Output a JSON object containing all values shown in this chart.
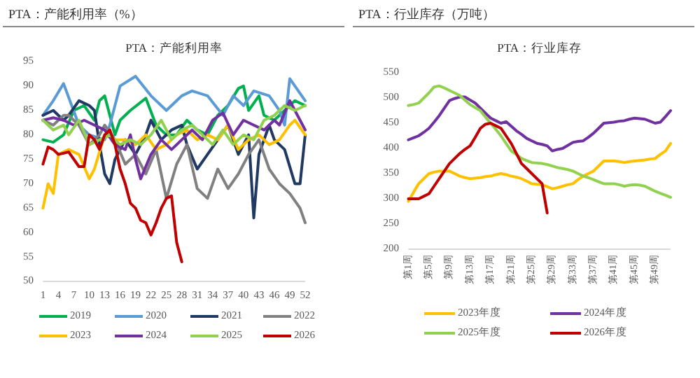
{
  "chart_data": [
    {
      "type": "line",
      "title": "PTA：产能利用率（%）",
      "subtitle": "PTA：产能利用率",
      "xlim": [
        1,
        52
      ],
      "xticks": [
        1,
        4,
        7,
        10,
        13,
        16,
        19,
        22,
        25,
        28,
        31,
        34,
        37,
        40,
        43,
        46,
        49,
        52
      ],
      "ylim": [
        50,
        95
      ],
      "yticks": [
        50,
        55,
        60,
        65,
        70,
        75,
        80,
        85,
        90,
        95
      ],
      "legend": "bottom",
      "series": [
        {
          "name": "2019",
          "color": "#00b050",
          "x": [
            1,
            3,
            5,
            7,
            9,
            11,
            12,
            13,
            15,
            16,
            18,
            21,
            23,
            25,
            27,
            29,
            31,
            33,
            35,
            37,
            39,
            40,
            41,
            43,
            44,
            46,
            48,
            50,
            52
          ],
          "values": [
            79,
            78.5,
            80,
            85,
            86,
            83,
            87,
            88,
            80,
            83,
            85,
            87.5,
            82,
            80,
            80,
            83,
            81,
            80,
            84,
            86,
            89.5,
            90,
            85,
            88,
            84,
            83,
            85,
            87,
            86
          ]
        },
        {
          "name": "2020",
          "color": "#5b9bd5",
          "x": [
            1,
            3,
            5,
            8,
            10,
            13,
            14,
            16,
            19,
            22,
            25,
            28,
            30,
            33,
            36,
            38,
            40,
            42,
            45,
            47,
            48,
            49,
            50,
            52
          ],
          "values": [
            84,
            87,
            90.5,
            82,
            80,
            79,
            82,
            90,
            92,
            88,
            85,
            88,
            89,
            88,
            84,
            88,
            86,
            89,
            88,
            85,
            82,
            91.5,
            90,
            87
          ]
        },
        {
          "name": "2021",
          "color": "#1f3864",
          "x": [
            1,
            3,
            5,
            6,
            8,
            10,
            11,
            12,
            13,
            14,
            15,
            17,
            19,
            21,
            22,
            24,
            26,
            28,
            29,
            31,
            33,
            35,
            37,
            39,
            41,
            42,
            43,
            45,
            46,
            48,
            50,
            51,
            52
          ],
          "values": [
            84,
            85,
            83,
            84,
            87,
            86,
            85,
            78,
            72,
            70,
            75,
            79,
            76,
            80,
            83,
            79,
            81,
            82,
            78,
            73,
            76,
            79,
            82,
            76,
            80,
            63,
            76,
            82,
            79,
            77,
            70,
            70,
            80
          ]
        },
        {
          "name": "2022",
          "color": "#808080",
          "x": [
            1,
            3,
            5,
            6,
            8,
            10,
            12,
            13,
            15,
            17,
            19,
            21,
            23,
            25,
            27,
            29,
            31,
            33,
            35,
            37,
            39,
            41,
            43,
            45,
            47,
            49,
            51,
            52
          ],
          "values": [
            83,
            82,
            84,
            84,
            82,
            78,
            80,
            82,
            79,
            74,
            76,
            72,
            77,
            67,
            74,
            78,
            69,
            67,
            73,
            69,
            72,
            76,
            79,
            73,
            70,
            68,
            65,
            62
          ]
        },
        {
          "name": "2023",
          "color": "#ffc000",
          "x": [
            1,
            2,
            3,
            4,
            6,
            8,
            10,
            11,
            13,
            15,
            17,
            19,
            21,
            23,
            25,
            27,
            29,
            31,
            33,
            35,
            37,
            39,
            41,
            43,
            45,
            47,
            49,
            50,
            52
          ],
          "values": [
            65,
            70,
            68,
            76,
            77,
            76,
            71,
            73,
            80,
            79,
            79,
            78,
            80,
            77,
            78,
            80,
            81,
            79,
            80,
            79,
            82,
            77,
            79,
            80,
            78,
            79,
            82,
            83,
            80
          ]
        },
        {
          "name": "2024",
          "color": "#7030a0",
          "x": [
            1,
            3,
            5,
            7,
            9,
            11,
            13,
            15,
            17,
            18,
            19,
            20,
            22,
            24,
            26,
            28,
            30,
            32,
            34,
            36,
            38,
            40,
            42,
            44,
            46,
            47,
            49,
            51,
            52
          ],
          "values": [
            83,
            83.5,
            83,
            82,
            83,
            82,
            81,
            78,
            77,
            80,
            75,
            71,
            76,
            79,
            77,
            79,
            81,
            79,
            83,
            84.5,
            80,
            83,
            82,
            81,
            83,
            82,
            87,
            83,
            81
          ]
        },
        {
          "name": "2025",
          "color": "#92d050",
          "x": [
            1,
            3,
            5,
            6,
            8,
            10,
            12,
            14,
            16,
            18,
            20,
            22,
            24,
            26,
            28,
            30,
            32,
            34,
            36,
            38,
            40,
            42,
            44,
            46,
            48,
            50,
            52
          ],
          "values": [
            83,
            81,
            82,
            80,
            83,
            78,
            79,
            80,
            78,
            79,
            78,
            80,
            83,
            79,
            81,
            82,
            80,
            78,
            81,
            78,
            80,
            79,
            83,
            84,
            86,
            85,
            86
          ]
        },
        {
          "name": "2026",
          "color": "#c00000",
          "x": [
            1,
            2,
            3,
            4,
            6,
            8,
            9,
            10,
            11,
            12,
            13,
            14,
            15,
            16,
            17,
            18,
            19,
            20,
            21,
            22,
            23,
            24,
            25,
            26,
            27,
            28
          ],
          "values": [
            74,
            77.5,
            77,
            76,
            76.5,
            73.5,
            73.5,
            80,
            79,
            77,
            80,
            81,
            78,
            73,
            70,
            66,
            65,
            62.5,
            62,
            59.5,
            62,
            65,
            67,
            67.5,
            58,
            54
          ]
        }
      ]
    },
    {
      "type": "line",
      "title": "PTA：行业库存（万吨）",
      "subtitle": "PTA：行业库存",
      "categories": [
        "第1周",
        null,
        null,
        null,
        "第5周",
        null,
        null,
        null,
        "第9周",
        null,
        null,
        null,
        "第13周",
        null,
        null,
        null,
        "第17周",
        null,
        null,
        null,
        "第21周",
        null,
        null,
        null,
        "第25周",
        null,
        null,
        null,
        "第29周",
        null,
        null,
        null,
        "第33周",
        null,
        null,
        null,
        "第37周",
        null,
        null,
        null,
        "第41周",
        null,
        null,
        null,
        "第45周",
        null,
        null,
        null,
        "第49周",
        null,
        null,
        null
      ],
      "ylim": [
        200,
        550
      ],
      "yticks": [
        200,
        250,
        300,
        350,
        400,
        450,
        500,
        550
      ],
      "legend": "bottom",
      "series": [
        {
          "name": "2023年度",
          "color": "#ffc000",
          "values": [
            295,
            313,
            330,
            340,
            350,
            353,
            355,
            355,
            355,
            350,
            345,
            342,
            340,
            341,
            342,
            344,
            345,
            348,
            350,
            348,
            345,
            343,
            340,
            335,
            330,
            329,
            328,
            324,
            320,
            322,
            325,
            328,
            330,
            338,
            345,
            350,
            355,
            365,
            375,
            375,
            375,
            374,
            372,
            374,
            375,
            376,
            377,
            379,
            380,
            388,
            395,
            410
          ]
        },
        {
          "name": "2024年度",
          "color": "#7030a0",
          "values": [
            417,
            421,
            425,
            432,
            440,
            452,
            465,
            480,
            495,
            499,
            502,
            502,
            496,
            490,
            480,
            470,
            460,
            455,
            450,
            453,
            444,
            435,
            428,
            420,
            415,
            410,
            408,
            405,
            395,
            398,
            400,
            406,
            412,
            414,
            415,
            422,
            430,
            440,
            450,
            451,
            452,
            454,
            455,
            458,
            460,
            459,
            458,
            454,
            450,
            452,
            463,
            475
          ]
        },
        {
          "name": "2025年度",
          "color": "#92d050",
          "values": [
            485,
            487,
            490,
            500,
            510,
            522,
            524,
            520,
            515,
            510,
            505,
            496,
            487,
            481,
            475,
            462,
            450,
            438,
            425,
            410,
            395,
            388,
            380,
            376,
            372,
            371,
            370,
            368,
            365,
            362,
            360,
            358,
            355,
            350,
            345,
            342,
            338,
            334,
            330,
            330,
            330,
            328,
            325,
            327,
            328,
            327,
            325,
            320,
            315,
            311,
            307,
            303
          ]
        },
        {
          "name": "2026年度",
          "color": "#c00000",
          "values": [
            300,
            300,
            300,
            305,
            310,
            325,
            340,
            355,
            370,
            380,
            390,
            398,
            405,
            422,
            440,
            448,
            450,
            445,
            440,
            425,
            410,
            390,
            370,
            360,
            350,
            340,
            330,
            272,
            null,
            null,
            null,
            null,
            null,
            null,
            null,
            null,
            null,
            null,
            null,
            null,
            null,
            null,
            null,
            null,
            null,
            null,
            null,
            null,
            null,
            null,
            null,
            null
          ]
        }
      ]
    }
  ]
}
